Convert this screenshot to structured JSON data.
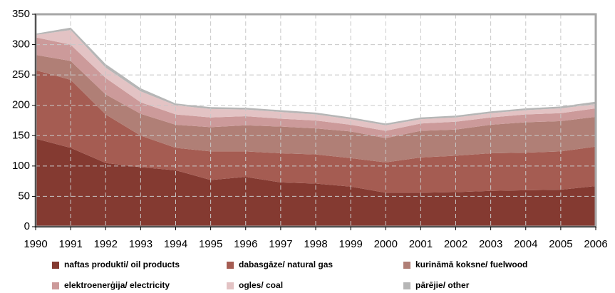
{
  "chart_data": {
    "type": "stacked-area",
    "categories": [
      "1990",
      "1991",
      "1992",
      "1993",
      "1994",
      "1995",
      "1996",
      "1997",
      "1998",
      "1999",
      "2000",
      "2001",
      "2002",
      "2003",
      "2004",
      "2005",
      "2006"
    ],
    "series": [
      {
        "name": "naftas produkti/ oil products",
        "color": "#843a31",
        "values": [
          145,
          130,
          105,
          98,
          93,
          77,
          82,
          73,
          71,
          66,
          56,
          56,
          57,
          59,
          60,
          61,
          67
        ]
      },
      {
        "name": "dabasgāze/ natural gas",
        "color": "#a55c52",
        "values": [
          113,
          112,
          80,
          52,
          37,
          47,
          42,
          48,
          48,
          47,
          50,
          58,
          60,
          62,
          62,
          63,
          65
        ]
      },
      {
        "name": "kurināmā koksne/ fuelwood",
        "color": "#b07f76",
        "values": [
          25,
          31,
          33,
          36,
          38,
          40,
          43,
          44,
          43,
          44,
          40,
          44,
          43,
          47,
          50,
          50,
          49
        ]
      },
      {
        "name": "elektroenerģija/ electricity",
        "color": "#cc9a9a",
        "values": [
          29,
          27,
          27,
          19,
          17,
          16,
          15,
          13,
          13,
          11,
          12,
          12,
          13,
          12,
          13,
          13,
          14
        ]
      },
      {
        "name": "ogles/ coal",
        "color": "#e3c3c4",
        "values": [
          4,
          24,
          17,
          18,
          15,
          14,
          11,
          11,
          10,
          9,
          9,
          7,
          7,
          7,
          7,
          8,
          7
        ]
      },
      {
        "name": "pārējie/ other",
        "color": "#b6b6b6",
        "values": [
          2,
          4,
          6,
          5,
          3,
          3,
          3,
          3,
          3,
          3,
          3,
          3,
          3,
          3,
          3,
          3,
          4
        ]
      }
    ],
    "ylim": [
      0,
      350
    ],
    "yticks": [
      0,
      50,
      100,
      150,
      200,
      250,
      300,
      350
    ],
    "grid": true
  }
}
